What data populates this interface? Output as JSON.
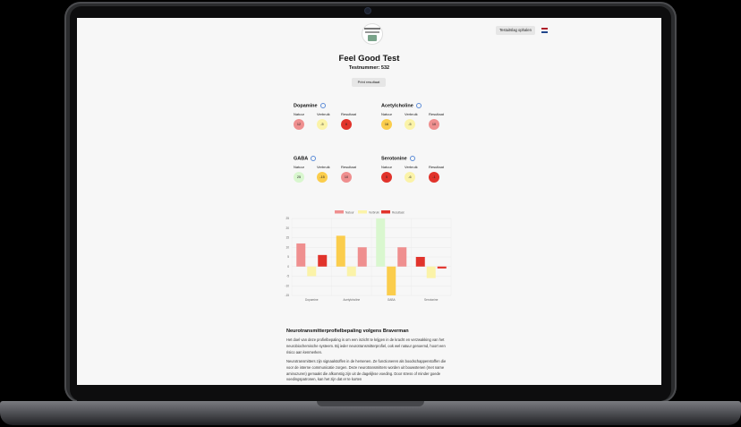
{
  "header": {
    "test_day_button": "Testuitslag ophalen",
    "flag_colors": [
      "#ae1c28",
      "#ffffff",
      "#21468b"
    ]
  },
  "page": {
    "title": "Feel Good Test",
    "subtitle": "Testnummer: 532",
    "print_button": "Print resultaat"
  },
  "column_labels": {
    "nature": "Natuur",
    "usage": "Verbruik",
    "result": "Resultaat"
  },
  "neurotransmitters": [
    {
      "name": "Dopamine",
      "values": [
        "12",
        "-5",
        "6"
      ],
      "colors": [
        "#ef8f8f",
        "#fbf3a8",
        "#e1332b"
      ]
    },
    {
      "name": "Acetylcholine",
      "values": [
        "16",
        "-5",
        "10"
      ],
      "colors": [
        "#fbcd4c",
        "#fbf3a8",
        "#ef8f8f"
      ]
    },
    {
      "name": "GABA",
      "values": [
        "25",
        "-15",
        "10"
      ],
      "colors": [
        "#d9f7cf",
        "#fbcd4c",
        "#ef8f8f"
      ]
    },
    {
      "name": "Serotonine",
      "values": [
        "5",
        "-6",
        "-1"
      ],
      "colors": [
        "#e1332b",
        "#fbf3a8",
        "#e1332b"
      ]
    }
  ],
  "chart_data": {
    "type": "bar",
    "categories": [
      "Dopamine",
      "Acetylcholine",
      "GABA",
      "Serotonine"
    ],
    "series": [
      {
        "name": "Natuur",
        "values": [
          12,
          16,
          25,
          5
        ],
        "colors": [
          "#ef8f8f",
          "#fbcd4c",
          "#d9f7cf",
          "#e1332b"
        ]
      },
      {
        "name": "Verbruik",
        "values": [
          -5,
          -5,
          -15,
          -6
        ],
        "colors": [
          "#fbf3a8",
          "#fbf3a8",
          "#fbcd4c",
          "#fbf3a8"
        ]
      },
      {
        "name": "Resultaat",
        "values": [
          6,
          10,
          10,
          -1
        ],
        "colors": [
          "#e1332b",
          "#ef8f8f",
          "#ef8f8f",
          "#e1332b"
        ]
      }
    ],
    "legend_colors": [
      "#ef8f8f",
      "#fbf3a8",
      "#e1332b"
    ],
    "ylim": [
      -15,
      25
    ],
    "yticks": [
      25,
      20,
      15,
      10,
      5,
      0,
      -5,
      -10,
      -15
    ],
    "legend_position": "top",
    "grid": true
  },
  "article": {
    "heading": "Neurotransmitterprofielbepaling volgens Braverman",
    "p1": "Het doel van deze profielbepaling is om een inzicht te krijgen in de kracht en verzwakking van het neurobiochemische systeem. Bij ieder neurotransmitterprofiel, ook wel natuur genoemd, hoort een risico aan kenmerken.",
    "p2": "Neurotransmitters zijn signaalstoffen in de hersenen. Ze functioneren als boodschappenstoffen die voor de interne communicatie zorgen. Deze neurotransmitters worden uit bouwstenen (met name aminozuren) gemaakt die afkomstig zijn uit de dagelijkse voeding. Door stress of minder goede voedingspatronen, kan het zijn dat er te korten"
  }
}
